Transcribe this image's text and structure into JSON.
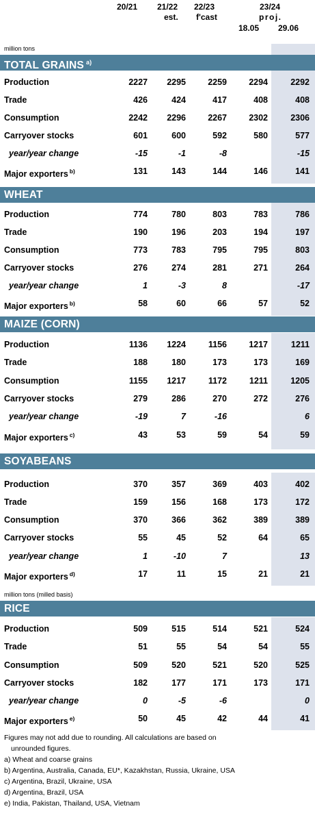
{
  "header": {
    "col1": "20/21",
    "col2": "21/22",
    "col2_sub": "est.",
    "col3": "22/23",
    "col3_sub": "f'cast",
    "col45": "23/24",
    "col45_sub": "proj.",
    "col4_date": "18.05",
    "col5_date": "29.06",
    "unit": "million tons"
  },
  "sections": [
    {
      "title": "TOTAL GRAINS",
      "sup": "a)",
      "rows": [
        {
          "label": "Production",
          "sup": "",
          "italic": false,
          "v": [
            "2227",
            "2295",
            "2259",
            "2294",
            "2292"
          ]
        },
        {
          "label": "Trade",
          "sup": "",
          "italic": false,
          "v": [
            "426",
            "424",
            "417",
            "408",
            "408"
          ]
        },
        {
          "label": "Consumption",
          "sup": "",
          "italic": false,
          "v": [
            "2242",
            "2296",
            "2267",
            "2302",
            "2306"
          ]
        },
        {
          "label": "Carryover stocks",
          "sup": "",
          "italic": false,
          "v": [
            "601",
            "600",
            "592",
            "580",
            "577"
          ]
        },
        {
          "label": "year/year change",
          "sup": "",
          "italic": true,
          "v": [
            "-15",
            "-1",
            "-8",
            "",
            "-15"
          ]
        },
        {
          "label": "Major exporters",
          "sup": "b)",
          "italic": false,
          "v": [
            "131",
            "143",
            "144",
            "146",
            "141"
          ]
        }
      ]
    },
    {
      "title": "WHEAT",
      "sup": "",
      "rows": [
        {
          "label": "Production",
          "sup": "",
          "italic": false,
          "v": [
            "774",
            "780",
            "803",
            "783",
            "786"
          ]
        },
        {
          "label": "Trade",
          "sup": "",
          "italic": false,
          "v": [
            "190",
            "196",
            "203",
            "194",
            "197"
          ]
        },
        {
          "label": "Consumption",
          "sup": "",
          "italic": false,
          "v": [
            "773",
            "783",
            "795",
            "795",
            "803"
          ]
        },
        {
          "label": "Carryover stocks",
          "sup": "",
          "italic": false,
          "v": [
            "276",
            "274",
            "281",
            "271",
            "264"
          ]
        },
        {
          "label": "year/year change",
          "sup": "",
          "italic": true,
          "v": [
            "1",
            "-3",
            "8",
            "",
            "-17"
          ]
        },
        {
          "label": "Major exporters",
          "sup": "b)",
          "italic": false,
          "v": [
            "58",
            "60",
            "66",
            "57",
            "52"
          ]
        }
      ]
    },
    {
      "title": "MAIZE (CORN)",
      "sup": "",
      "rows": [
        {
          "label": "Production",
          "sup": "",
          "italic": false,
          "v": [
            "1136",
            "1224",
            "1156",
            "1217",
            "1211"
          ]
        },
        {
          "label": "Trade",
          "sup": "",
          "italic": false,
          "v": [
            "188",
            "180",
            "173",
            "173",
            "169"
          ]
        },
        {
          "label": "Consumption",
          "sup": "",
          "italic": false,
          "v": [
            "1155",
            "1217",
            "1172",
            "1211",
            "1205"
          ]
        },
        {
          "label": "Carryover stocks",
          "sup": "",
          "italic": false,
          "v": [
            "279",
            "286",
            "270",
            "272",
            "276"
          ]
        },
        {
          "label": "year/year change",
          "sup": "",
          "italic": true,
          "v": [
            "-19",
            "7",
            "-16",
            "",
            "6"
          ]
        },
        {
          "label": "Major exporters",
          "sup": "c)",
          "italic": false,
          "v": [
            "43",
            "53",
            "59",
            "54",
            "59"
          ]
        }
      ]
    },
    {
      "title": "SOYABEANS",
      "sup": "",
      "rows": [
        {
          "label": "Production",
          "sup": "",
          "italic": false,
          "v": [
            "370",
            "357",
            "369",
            "403",
            "402"
          ]
        },
        {
          "label": "Trade",
          "sup": "",
          "italic": false,
          "v": [
            "159",
            "156",
            "168",
            "173",
            "172"
          ]
        },
        {
          "label": "Consumption",
          "sup": "",
          "italic": false,
          "v": [
            "370",
            "366",
            "362",
            "389",
            "389"
          ]
        },
        {
          "label": "Carryover stocks",
          "sup": "",
          "italic": false,
          "v": [
            "55",
            "45",
            "52",
            "64",
            "65"
          ]
        },
        {
          "label": "year/year change",
          "sup": "",
          "italic": true,
          "v": [
            "1",
            "-10",
            "7",
            "",
            "13"
          ]
        },
        {
          "label": "Major exporters",
          "sup": "d)",
          "italic": false,
          "v": [
            "17",
            "11",
            "15",
            "21",
            "21"
          ]
        }
      ]
    },
    {
      "title": "RICE",
      "sup": "",
      "unit": "million tons (milled basis)",
      "rows": [
        {
          "label": "Production",
          "sup": "",
          "italic": false,
          "v": [
            "509",
            "515",
            "514",
            "521",
            "524"
          ]
        },
        {
          "label": "Trade",
          "sup": "",
          "italic": false,
          "v": [
            "51",
            "55",
            "54",
            "54",
            "55"
          ]
        },
        {
          "label": "Consumption",
          "sup": "",
          "italic": false,
          "v": [
            "509",
            "520",
            "521",
            "520",
            "525"
          ]
        },
        {
          "label": "Carryover stocks",
          "sup": "",
          "italic": false,
          "v": [
            "182",
            "177",
            "171",
            "173",
            "171"
          ]
        },
        {
          "label": "year/year change",
          "sup": "",
          "italic": true,
          "v": [
            "0",
            "-5",
            "-6",
            "",
            "0"
          ]
        },
        {
          "label": "Major exporters",
          "sup": "e)",
          "italic": false,
          "v": [
            "50",
            "45",
            "42",
            "44",
            "41"
          ]
        }
      ]
    }
  ],
  "notes": {
    "line1": "Figures may not add due to rounding. All calculations are based on",
    "line2": "unrounded figures.",
    "a": "a) Wheat and coarse grains",
    "b": "b) Argentina, Australia, Canada, EU*, Kazakhstan, Russia, Ukraine, USA",
    "c": "c) Argentina, Brazil, Ukraine, USA",
    "d": "d) Argentina, Brazil, USA",
    "e": "e) India, Pakistan, Thailand, USA, Vietnam"
  }
}
